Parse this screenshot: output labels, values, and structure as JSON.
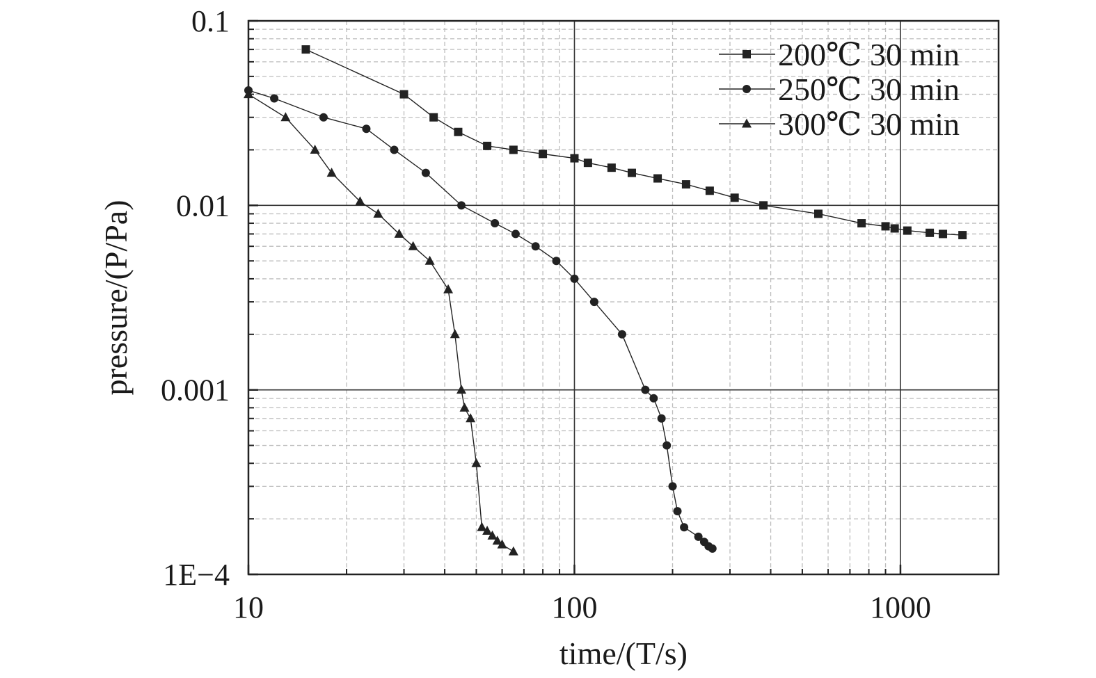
{
  "chart_data": {
    "type": "scatter",
    "xlabel": "time/(T/s)",
    "ylabel": "pressure/(P/Pa)",
    "x_scale": "log",
    "y_scale": "log",
    "xlim": [
      10,
      2000
    ],
    "ylim": [
      0.0001,
      0.1
    ],
    "x_ticks": [
      10,
      100,
      1000
    ],
    "x_tick_labels": [
      "10",
      "100",
      "1000"
    ],
    "y_ticks": [
      0.0001,
      0.001,
      0.01,
      0.1
    ],
    "y_tick_labels": [
      "1E−4",
      "0.001",
      "0.01",
      "0.1"
    ],
    "grid": true,
    "legend_position": "top-right",
    "colors": {
      "series": "#222222",
      "frame": "#222222",
      "major_grid": "#333333",
      "minor_grid": "#bdbdbd"
    },
    "series": [
      {
        "name": "200℃ 30 min",
        "marker": "square",
        "x": [
          15,
          30,
          37,
          44,
          54,
          65,
          80,
          100,
          110,
          130,
          150,
          180,
          220,
          260,
          310,
          380,
          560,
          760,
          900,
          960,
          1050,
          1230,
          1350,
          1550
        ],
        "y": [
          0.07,
          0.04,
          0.03,
          0.025,
          0.021,
          0.02,
          0.019,
          0.018,
          0.017,
          0.016,
          0.015,
          0.014,
          0.013,
          0.012,
          0.011,
          0.01,
          0.009,
          0.008,
          0.0077,
          0.0075,
          0.0073,
          0.0071,
          0.007,
          0.0069
        ]
      },
      {
        "name": "250℃ 30 min",
        "marker": "circle",
        "x": [
          10,
          12,
          17,
          23,
          28,
          35,
          45,
          57,
          66,
          76,
          88,
          100,
          115,
          140,
          165,
          175,
          185,
          192,
          200,
          207,
          217,
          240,
          250,
          258,
          265
        ],
        "y": [
          0.042,
          0.038,
          0.03,
          0.026,
          0.02,
          0.015,
          0.01,
          0.008,
          0.007,
          0.006,
          0.005,
          0.004,
          0.003,
          0.002,
          0.001,
          0.0009,
          0.0007,
          0.0005,
          0.0003,
          0.00022,
          0.00018,
          0.00016,
          0.00015,
          0.000142,
          0.000138
        ]
      },
      {
        "name": "300℃ 30 min",
        "marker": "triangle",
        "x": [
          10,
          13,
          16,
          18,
          22,
          25,
          29,
          32,
          36,
          41,
          43,
          45,
          46,
          48,
          50,
          52,
          54,
          56,
          58,
          60,
          65
        ],
        "y": [
          0.04,
          0.03,
          0.02,
          0.015,
          0.0105,
          0.009,
          0.007,
          0.006,
          0.005,
          0.0035,
          0.002,
          0.001,
          0.0008,
          0.0007,
          0.0004,
          0.00018,
          0.000172,
          0.000162,
          0.000152,
          0.000145,
          0.000133
        ]
      }
    ]
  }
}
